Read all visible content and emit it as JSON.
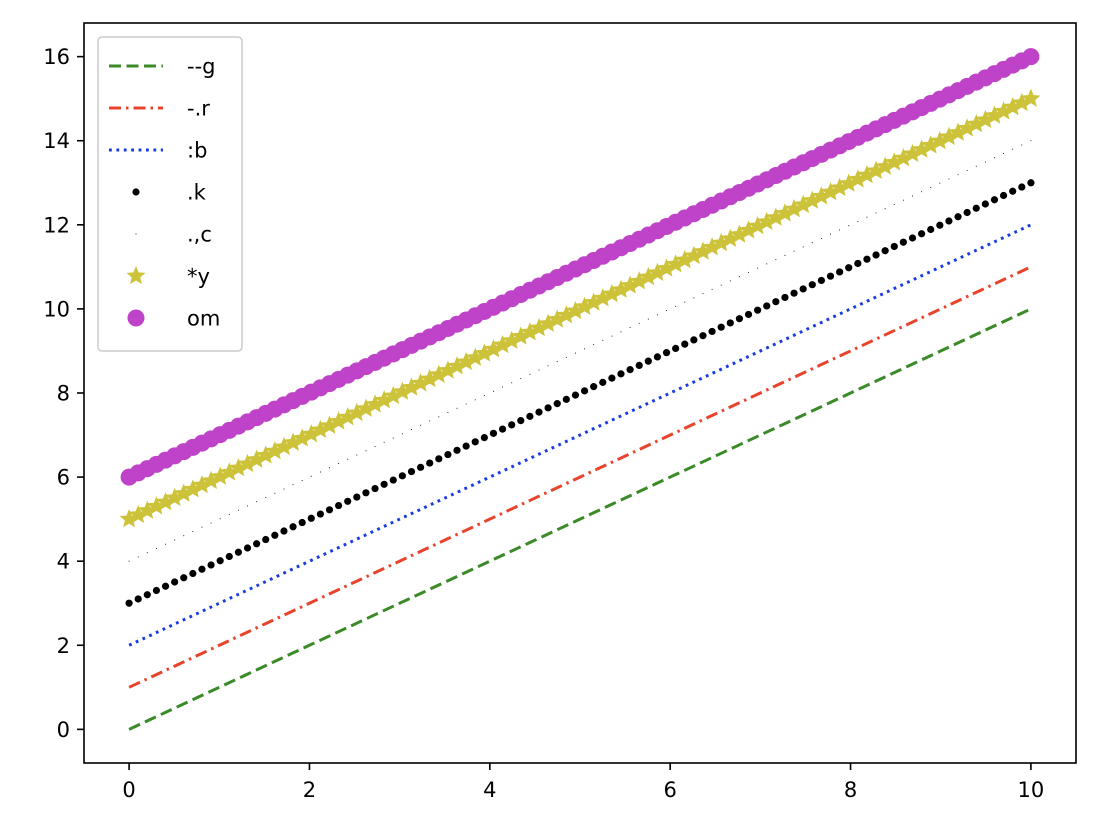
{
  "chart_data": {
    "type": "line",
    "title": "",
    "xlabel": "",
    "ylabel": "",
    "xlim": [
      -0.5,
      10.5
    ],
    "ylim": [
      -0.8,
      16.8
    ],
    "xticks": [
      0,
      2,
      4,
      6,
      8,
      10
    ],
    "yticks": [
      0,
      2,
      4,
      6,
      8,
      10,
      12,
      14,
      16
    ],
    "grid": false,
    "legend_position": "upper-left",
    "x": {
      "start": 0,
      "stop": 10,
      "samples": 100
    },
    "series": [
      {
        "name": "--g",
        "offset": 0,
        "slope": 1,
        "color": "#3a8a28",
        "style": "dashed"
      },
      {
        "name": "-.r",
        "offset": 1,
        "slope": 1,
        "color": "#e8432c",
        "style": "dashdot"
      },
      {
        "name": ":b",
        "offset": 2,
        "slope": 1,
        "color": "#1a3be0",
        "style": "dotted"
      },
      {
        "name": ".k",
        "offset": 3,
        "slope": 1,
        "color": "#000000",
        "style": "point"
      },
      {
        "name": ".,c",
        "offset": 4,
        "slope": 1,
        "color": "#000000",
        "style": "pixel"
      },
      {
        "name": "*y",
        "offset": 5,
        "slope": 1,
        "color": "#cdc33a",
        "style": "star"
      },
      {
        "name": "om",
        "offset": 6,
        "slope": 1,
        "color": "#bf43c8",
        "style": "circle"
      }
    ]
  }
}
